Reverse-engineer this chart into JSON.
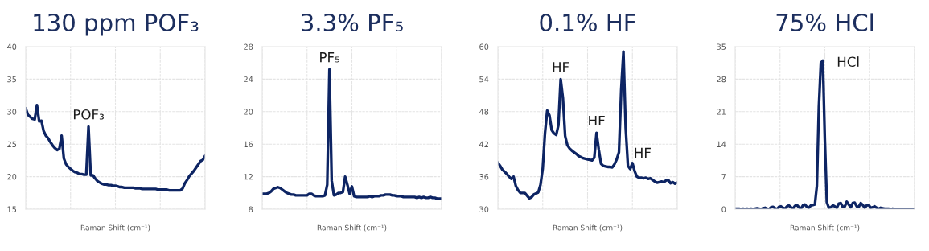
{
  "chart_data": [
    {
      "type": "line",
      "title": "130 ppm POF₃",
      "xlabel": "Raman Shift (cm⁻¹)",
      "color": "#0d2463",
      "ylim": [
        15,
        40
      ],
      "yticks": [
        15,
        20,
        25,
        30,
        35,
        40
      ],
      "grid": true,
      "tick_labels": "y",
      "categories": [
        null,
        null,
        null,
        null,
        null,
        null,
        null,
        null,
        null,
        null,
        null,
        null,
        null,
        null,
        null,
        null,
        null,
        null,
        null,
        null,
        null,
        null,
        null,
        null,
        null,
        null,
        null,
        null,
        null,
        null,
        null,
        null,
        null,
        null,
        null,
        null,
        null,
        null,
        null,
        null,
        null,
        null,
        null,
        null,
        null,
        null,
        null,
        null,
        null,
        null,
        null,
        null,
        null,
        null,
        null,
        null,
        null,
        null,
        null,
        null,
        null,
        null,
        null,
        null,
        null,
        null,
        null,
        null,
        null,
        null,
        null,
        null,
        null,
        null,
        null,
        null,
        null,
        null,
        null,
        null,
        null
      ],
      "values": [
        30.5,
        29.5,
        29.2,
        28.9,
        28.8,
        31.0,
        28.5,
        28.6,
        27.0,
        26.3,
        25.9,
        25.3,
        24.8,
        24.4,
        24.1,
        24.3,
        26.3,
        22.8,
        21.9,
        21.5,
        21.2,
        20.9,
        20.7,
        20.6,
        20.4,
        20.4,
        20.3,
        20.3,
        27.7,
        20.2,
        20.2,
        19.7,
        19.3,
        19.1,
        18.9,
        18.8,
        18.8,
        18.7,
        18.7,
        18.6,
        18.6,
        18.5,
        18.4,
        18.4,
        18.3,
        18.3,
        18.3,
        18.3,
        18.3,
        18.2,
        18.2,
        18.2,
        18.1,
        18.1,
        18.1,
        18.1,
        18.1,
        18.1,
        18.1,
        18.0,
        18.0,
        18.0,
        18.0,
        18.0,
        17.9,
        17.9,
        17.9,
        17.9,
        17.9,
        17.9,
        18.2,
        19.0,
        19.5,
        20.1,
        20.5,
        20.9,
        21.4,
        21.9,
        22.4,
        22.6,
        23.2
      ],
      "annotations": [
        {
          "text": "POF₃",
          "y": 27.7
        }
      ]
    },
    {
      "type": "line",
      "title": "3.3% PF₅",
      "xlabel": "Raman Shift (cm⁻¹)",
      "color": "#0d2463",
      "ylim": [
        8,
        28
      ],
      "yticks": [
        8,
        12,
        16,
        20,
        24,
        28
      ],
      "grid": true,
      "tick_labels": "y",
      "categories": [
        null,
        null,
        null,
        null,
        null,
        null,
        null,
        null,
        null,
        null,
        null,
        null,
        null,
        null,
        null,
        null,
        null,
        null,
        null,
        null,
        null,
        null,
        null,
        null,
        null,
        null,
        null,
        null,
        null,
        null,
        null,
        null,
        null,
        null,
        null,
        null,
        null,
        null,
        null,
        null,
        null,
        null,
        null,
        null,
        null,
        null,
        null,
        null,
        null,
        null,
        null,
        null,
        null,
        null,
        null,
        null,
        null,
        null,
        null,
        null,
        null,
        null,
        null,
        null,
        null,
        null,
        null,
        null,
        null,
        null,
        null,
        null,
        null,
        null,
        null,
        null,
        null,
        null,
        null,
        null,
        null
      ],
      "values": [
        9.9,
        9.9,
        9.9,
        10.0,
        10.2,
        10.5,
        10.6,
        10.7,
        10.6,
        10.4,
        10.2,
        10.0,
        9.9,
        9.8,
        9.8,
        9.7,
        9.7,
        9.7,
        9.7,
        9.7,
        9.7,
        9.9,
        9.9,
        9.7,
        9.6,
        9.6,
        9.6,
        9.6,
        9.7,
        11.0,
        25.2,
        11.5,
        9.7,
        9.8,
        10.0,
        10.0,
        10.1,
        12.0,
        11.0,
        9.9,
        10.8,
        9.6,
        9.5,
        9.5,
        9.5,
        9.5,
        9.5,
        9.5,
        9.6,
        9.5,
        9.6,
        9.6,
        9.6,
        9.7,
        9.7,
        9.8,
        9.8,
        9.8,
        9.7,
        9.7,
        9.6,
        9.6,
        9.6,
        9.5,
        9.5,
        9.5,
        9.5,
        9.5,
        9.5,
        9.4,
        9.5,
        9.4,
        9.5,
        9.4,
        9.4,
        9.5,
        9.4,
        9.4,
        9.3,
        9.3,
        9.3
      ],
      "annotations": [
        {
          "text": "PF₅",
          "y": 25.2
        }
      ]
    },
    {
      "type": "line",
      "title": "0.1% HF",
      "xlabel": "Raman Shift (cm⁻¹)",
      "color": "#0d2463",
      "ylim": [
        30,
        60
      ],
      "yticks": [
        30,
        36,
        42,
        48,
        54,
        60
      ],
      "grid": true,
      "tick_labels": "y",
      "categories": [
        null,
        null,
        null,
        null,
        null,
        null,
        null,
        null,
        null,
        null,
        null,
        null,
        null,
        null,
        null,
        null,
        null,
        null,
        null,
        null,
        null,
        null,
        null,
        null,
        null,
        null,
        null,
        null,
        null,
        null,
        null,
        null,
        null,
        null,
        null,
        null,
        null,
        null,
        null,
        null,
        null,
        null,
        null,
        null,
        null,
        null,
        null,
        null,
        null,
        null,
        null,
        null,
        null,
        null,
        null,
        null,
        null,
        null,
        null,
        null,
        null,
        null,
        null,
        null,
        null,
        null,
        null,
        null,
        null,
        null,
        null,
        null,
        null,
        null,
        null,
        null,
        null,
        null,
        null,
        null,
        null
      ],
      "values": [
        38.6,
        38.0,
        37.3,
        36.9,
        36.5,
        36.0,
        35.6,
        36.0,
        34.3,
        33.5,
        33.0,
        33.0,
        33.0,
        32.5,
        32.0,
        32.2,
        32.7,
        32.9,
        33.1,
        34.5,
        37.5,
        44.0,
        48.2,
        47.3,
        44.6,
        44.0,
        43.7,
        45.5,
        54.0,
        50.5,
        43.5,
        41.8,
        41.2,
        40.8,
        40.5,
        40.2,
        39.8,
        39.6,
        39.4,
        39.3,
        39.2,
        39.1,
        39.0,
        39.5,
        44.1,
        41.0,
        38.4,
        38.0,
        37.9,
        37.8,
        37.8,
        37.7,
        38.3,
        39.2,
        40.5,
        52.0,
        59.1,
        45.0,
        38.0,
        37.4,
        38.5,
        37.0,
        36.0,
        35.8,
        35.8,
        35.7,
        35.8,
        35.6,
        35.7,
        35.4,
        35.1,
        34.9,
        35.0,
        35.1,
        35.0,
        35.3,
        35.4,
        34.8,
        35.0,
        34.7,
        34.9
      ],
      "annotations": [
        {
          "text": "HF",
          "y": 54.0
        },
        {
          "text": "HF",
          "y": 44.1
        },
        "HF"
      ]
    },
    {
      "type": "line",
      "title": "75% HCl",
      "xlabel": "Raman Shift (cm⁻¹)",
      "color": "#0d2463",
      "ylim": [
        0,
        35
      ],
      "yticks": [
        0,
        7,
        14,
        21,
        28,
        35
      ],
      "grid": true,
      "tick_labels": "y",
      "categories": [
        null,
        null,
        null,
        null,
        null,
        null,
        null,
        null,
        null,
        null,
        null,
        null,
        null,
        null,
        null,
        null,
        null,
        null,
        null,
        null,
        null,
        null,
        null,
        null,
        null,
        null,
        null,
        null,
        null,
        null,
        null,
        null,
        null,
        null,
        null,
        null,
        null,
        null,
        null,
        null,
        null,
        null,
        null,
        null,
        null,
        null,
        null,
        null,
        null,
        null,
        null,
        null,
        null,
        null,
        null,
        null,
        null,
        null,
        null,
        null,
        null,
        null,
        null,
        null,
        null,
        null,
        null,
        null,
        null,
        null,
        null,
        null,
        null,
        null,
        null,
        null,
        null,
        null,
        null,
        null,
        null,
        null,
        null,
        null,
        null,
        null,
        null,
        null,
        null,
        null,
        null
      ],
      "values": [
        0.1,
        0.1,
        0.1,
        0.0,
        0.1,
        0.0,
        0.1,
        0.0,
        0.1,
        0.0,
        0.1,
        0.2,
        0.1,
        0.0,
        0.2,
        0.3,
        0.1,
        0.0,
        0.4,
        0.5,
        0.2,
        0.0,
        0.5,
        0.6,
        0.3,
        0.1,
        0.6,
        0.8,
        0.4,
        0.1,
        0.7,
        0.9,
        0.4,
        0.1,
        0.8,
        1.0,
        0.5,
        0.3,
        0.8,
        0.9,
        1.0,
        5.0,
        22.0,
        31.5,
        32.0,
        15.0,
        1.5,
        0.3,
        0.4,
        0.8,
        0.6,
        0.3,
        1.2,
        1.3,
        0.5,
        0.6,
        1.6,
        1.0,
        0.4,
        1.3,
        1.4,
        0.6,
        0.5,
        1.3,
        0.9,
        0.3,
        0.8,
        0.9,
        0.3,
        0.4,
        0.6,
        0.3,
        0.1,
        0.3,
        0.2,
        0.1,
        0.1,
        0.1,
        0.0,
        0.1,
        0.0,
        0.0,
        0.0,
        0.0,
        0.0,
        0.0,
        0.0,
        0.0,
        0.0,
        0.0,
        0.0
      ],
      "annotations": [
        "HCl"
      ]
    }
  ]
}
